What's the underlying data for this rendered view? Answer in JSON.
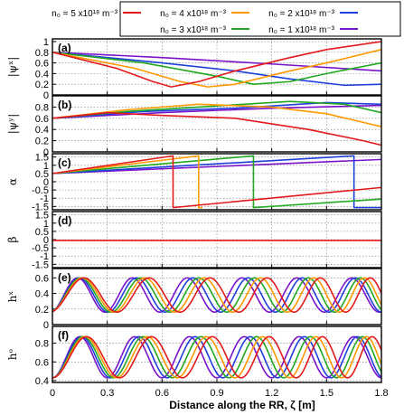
{
  "chart_data": {
    "type": "line",
    "xlabel": "Distance along the RR, ζ [m]",
    "xlim": [
      0,
      1.8
    ],
    "xticks": [
      "0",
      "0.3",
      "0.6",
      "0.9",
      "1.2",
      "1.5",
      "1.8"
    ],
    "legend": {
      "placement": "top-right",
      "entries": [
        {
          "label": "n₀ = 5 x10¹⁸ m⁻³",
          "color": "#e31a1c"
        },
        {
          "label": "n₀ = 4 x10¹⁸ m⁻³",
          "color": "#ff9900"
        },
        {
          "label": "n₀ = 2 x10¹⁸ m⁻³",
          "color": "#1f3fdc"
        },
        {
          "label": "n₀ = 3 x10¹⁸ m⁻³",
          "color": "#21a821"
        },
        {
          "label": "n₀ = 1 x10¹⁸ m⁻³",
          "color": "#7b13c9"
        }
      ]
    },
    "panels": [
      {
        "label": "(a)",
        "ylabel": "|ψˣ|",
        "ylim": [
          0,
          1.05
        ],
        "yticks": [
          "0",
          "0.2",
          "0.4",
          "0.6",
          "0.8",
          "1"
        ],
        "series": [
          {
            "color": "#e31a1c",
            "points": [
              [
                0,
                0.8
              ],
              [
                0.35,
                0.5
              ],
              [
                0.55,
                0.25
              ],
              [
                0.65,
                0.15
              ],
              [
                0.8,
                0.25
              ],
              [
                1.0,
                0.45
              ],
              [
                1.3,
                0.7
              ],
              [
                1.5,
                0.85
              ],
              [
                1.8,
                1.0
              ]
            ]
          },
          {
            "color": "#ff9900",
            "points": [
              [
                0,
                0.8
              ],
              [
                0.45,
                0.5
              ],
              [
                0.7,
                0.25
              ],
              [
                0.85,
                0.15
              ],
              [
                1.0,
                0.2
              ],
              [
                1.3,
                0.45
              ],
              [
                1.5,
                0.6
              ],
              [
                1.8,
                0.85
              ]
            ]
          },
          {
            "color": "#21a821",
            "points": [
              [
                0,
                0.8
              ],
              [
                0.5,
                0.6
              ],
              [
                0.9,
                0.35
              ],
              [
                1.1,
                0.2
              ],
              [
                1.3,
                0.25
              ],
              [
                1.5,
                0.4
              ],
              [
                1.8,
                0.6
              ]
            ]
          },
          {
            "color": "#1f3fdc",
            "points": [
              [
                0,
                0.8
              ],
              [
                0.6,
                0.6
              ],
              [
                1.0,
                0.45
              ],
              [
                1.3,
                0.3
              ],
              [
                1.6,
                0.18
              ],
              [
                1.8,
                0.2
              ]
            ]
          },
          {
            "color": "#7b13c9",
            "points": [
              [
                0,
                0.8
              ],
              [
                0.6,
                0.7
              ],
              [
                1.2,
                0.58
              ],
              [
                1.8,
                0.45
              ]
            ]
          }
        ]
      },
      {
        "label": "(b)",
        "ylabel": "|ψʸ|",
        "ylim": [
          0,
          1.0
        ],
        "yticks": [
          "0",
          "0.2",
          "0.4",
          "0.6",
          "0.8"
        ],
        "series": [
          {
            "color": "#e31a1c",
            "points": [
              [
                0,
                0.6
              ],
              [
                0.3,
                0.7
              ],
              [
                0.6,
                0.65
              ],
              [
                1.0,
                0.6
              ],
              [
                1.4,
                0.4
              ],
              [
                1.7,
                0.2
              ],
              [
                1.8,
                0.12
              ]
            ]
          },
          {
            "color": "#ff9900",
            "points": [
              [
                0,
                0.6
              ],
              [
                0.4,
                0.75
              ],
              [
                0.8,
                0.85
              ],
              [
                1.2,
                0.8
              ],
              [
                1.5,
                0.68
              ],
              [
                1.8,
                0.45
              ]
            ]
          },
          {
            "color": "#21a821",
            "points": [
              [
                0,
                0.6
              ],
              [
                0.4,
                0.72
              ],
              [
                0.8,
                0.8
              ],
              [
                1.3,
                0.9
              ],
              [
                1.6,
                0.85
              ],
              [
                1.8,
                0.7
              ]
            ]
          },
          {
            "color": "#1f3fdc",
            "points": [
              [
                0,
                0.6
              ],
              [
                0.5,
                0.72
              ],
              [
                1.0,
                0.78
              ],
              [
                1.5,
                0.88
              ],
              [
                1.8,
                0.85
              ]
            ]
          },
          {
            "color": "#7b13c9",
            "points": [
              [
                0,
                0.6
              ],
              [
                0.6,
                0.7
              ],
              [
                1.2,
                0.78
              ],
              [
                1.8,
                0.83
              ]
            ]
          }
        ]
      },
      {
        "label": "(c)",
        "ylabel": "α",
        "ylim": [
          -1.7,
          1.7
        ],
        "yticks": [
          "-1.5",
          "-1",
          "-0.5",
          "0",
          "0.5",
          "1",
          "1.5"
        ],
        "series": [
          {
            "color": "#e31a1c",
            "points": [
              [
                0,
                0.5
              ],
              [
                0.66,
                1.57
              ],
              [
                0.66,
                -1.57
              ],
              [
                1.8,
                -0.35
              ]
            ]
          },
          {
            "color": "#ff9900",
            "points": [
              [
                0,
                0.5
              ],
              [
                0.8,
                1.57
              ],
              [
                0.8,
                -1.57
              ],
              [
                0.82,
                -1.57
              ]
            ]
          },
          {
            "color": "#21a821",
            "points": [
              [
                0,
                0.5
              ],
              [
                1.1,
                1.57
              ],
              [
                1.1,
                -1.57
              ],
              [
                1.8,
                -1.05
              ]
            ]
          },
          {
            "color": "#1f3fdc",
            "points": [
              [
                0,
                0.5
              ],
              [
                1.65,
                1.57
              ],
              [
                1.65,
                -1.57
              ],
              [
                1.8,
                -1.57
              ]
            ]
          },
          {
            "color": "#7b13c9",
            "points": [
              [
                0,
                0.5
              ],
              [
                1.8,
                1.35
              ]
            ]
          }
        ]
      },
      {
        "label": "(d)",
        "ylabel": "β",
        "ylim": [
          -1.7,
          1.7
        ],
        "yticks": [
          "-1.5",
          "-1",
          "-0.5",
          "0",
          "0.5",
          "1",
          "1.5"
        ],
        "series": [
          {
            "color": "#e31a1c",
            "points": [
              [
                0,
                -0.05
              ],
              [
                1.8,
                -0.05
              ]
            ]
          }
        ]
      },
      {
        "label": "(e)",
        "ylabel": "hˣ",
        "ylim": [
          0,
          0.72
        ],
        "yticks": [
          "0",
          "0.2",
          "0.4",
          "0.6"
        ],
        "wave": {
          "mid": 0.38,
          "amp": 0.22,
          "start_periods": [
            0.38,
            0.36,
            0.34,
            0.32,
            0.3
          ],
          "end_periods": [
            0.26,
            0.265,
            0.275,
            0.285,
            0.3
          ],
          "phase": 0.08,
          "colors": [
            "#e31a1c",
            "#ff9900",
            "#21a821",
            "#1f3fdc",
            "#7b13c9"
          ]
        }
      },
      {
        "label": "(f)",
        "ylabel": "hᵒ",
        "ylim": [
          0.38,
          0.98
        ],
        "yticks": [
          "0.4",
          "0.6",
          "0.8"
        ],
        "wave": {
          "mid": 0.65,
          "amp": 0.22,
          "start_periods": [
            0.38,
            0.36,
            0.34,
            0.32,
            0.3
          ],
          "end_periods": [
            0.26,
            0.265,
            0.275,
            0.285,
            0.3
          ],
          "phase": 0.0,
          "colors": [
            "#e31a1c",
            "#ff9900",
            "#21a821",
            "#1f3fdc",
            "#7b13c9"
          ]
        }
      }
    ]
  }
}
